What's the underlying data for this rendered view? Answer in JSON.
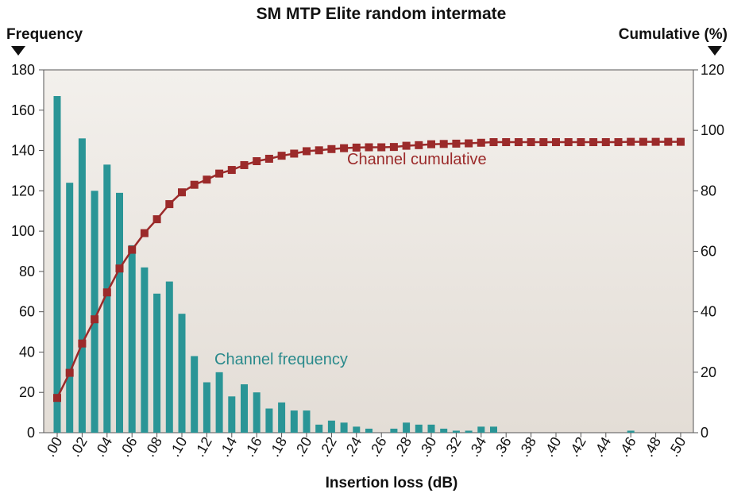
{
  "chart_data": {
    "type": "bar",
    "title": "SM MTP Elite random intermate",
    "xlabel": "Insertion loss (dB)",
    "ylabel_left": "Frequency",
    "ylabel_right": "Cumulative (%)",
    "ylim_left": [
      0,
      180
    ],
    "ylim_right": [
      0,
      120
    ],
    "yticks_left": [
      "0",
      "20",
      "40",
      "60",
      "80",
      "100",
      "120",
      "140",
      "160",
      "180"
    ],
    "yticks_right": [
      "0",
      "20",
      "40",
      "60",
      "80",
      "100",
      "120"
    ],
    "x": [
      0.0,
      0.01,
      0.02,
      0.03,
      0.04,
      0.05,
      0.06,
      0.07,
      0.08,
      0.09,
      0.1,
      0.11,
      0.12,
      0.13,
      0.14,
      0.15,
      0.16,
      0.17,
      0.18,
      0.19,
      0.2,
      0.21,
      0.22,
      0.23,
      0.24,
      0.25,
      0.26,
      0.27,
      0.28,
      0.29,
      0.3,
      0.31,
      0.32,
      0.33,
      0.34,
      0.35,
      0.36,
      0.37,
      0.38,
      0.39,
      0.4,
      0.41,
      0.42,
      0.43,
      0.44,
      0.45,
      0.46,
      0.47,
      0.48,
      0.49,
      0.5
    ],
    "xtick_labels": [
      ".00",
      ".02",
      ".04",
      ".06",
      ".08",
      ".10",
      ".12",
      ".14",
      ".16",
      ".18",
      ".20",
      ".22",
      ".24",
      ".26",
      ".28",
      ".30",
      ".32",
      ".34",
      ".36",
      ".38",
      ".40",
      ".42",
      ".44",
      ".46",
      ".48",
      ".50"
    ],
    "xtick_values": [
      0.0,
      0.02,
      0.04,
      0.06,
      0.08,
      0.1,
      0.12,
      0.14,
      0.16,
      0.18,
      0.2,
      0.22,
      0.24,
      0.26,
      0.28,
      0.3,
      0.32,
      0.34,
      0.36,
      0.38,
      0.4,
      0.42,
      0.44,
      0.46,
      0.48,
      0.5
    ],
    "series": [
      {
        "name": "Channel frequency",
        "axis": "left",
        "kind": "bar",
        "color": "#2a9596",
        "values": [
          167,
          124,
          146,
          120,
          133,
          119,
          93,
          82,
          69,
          75,
          59,
          38,
          25,
          30,
          18,
          24,
          20,
          12,
          15,
          11,
          11,
          4,
          6,
          5,
          3,
          2,
          0,
          2,
          5,
          4,
          4,
          2,
          1,
          1,
          3,
          3,
          0,
          0,
          0,
          0,
          0,
          0,
          0,
          0,
          0,
          0,
          1,
          0,
          0,
          0,
          0
        ]
      },
      {
        "name": "Channel cumulative",
        "axis": "right",
        "kind": "line",
        "color": "#9b2a2a",
        "values": [
          11.5,
          19.8,
          29.5,
          37.5,
          46.4,
          54.3,
          60.5,
          66.0,
          70.6,
          75.6,
          79.5,
          82.0,
          83.7,
          85.7,
          86.9,
          88.5,
          89.8,
          90.6,
          91.6,
          92.3,
          93.1,
          93.4,
          93.8,
          94.1,
          94.3,
          94.4,
          94.4,
          94.5,
          94.9,
          95.1,
          95.4,
          95.5,
          95.6,
          95.7,
          95.9,
          96.1,
          96.1,
          96.1,
          96.1,
          96.1,
          96.1,
          96.1,
          96.1,
          96.1,
          96.1,
          96.1,
          96.2,
          96.2,
          96.2,
          96.2,
          96.2
        ]
      }
    ],
    "colors": {
      "plot_bg_top": "#f3f0ec",
      "plot_bg_bottom": "#e3ddd6"
    }
  }
}
